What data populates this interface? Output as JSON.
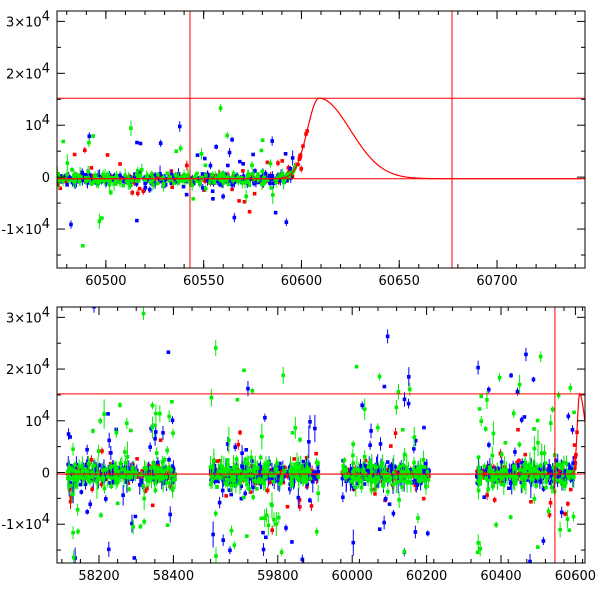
{
  "chart_data": [
    {
      "type": "scatter",
      "panel": "top",
      "title": "",
      "xlabel": "",
      "ylabel": "",
      "xlim": [
        60475,
        60745
      ],
      "ylim": [
        -17500,
        32000
      ],
      "x_ticks": [
        {
          "value": 60500,
          "label": "60500"
        },
        {
          "value": 60550,
          "label": "60550"
        },
        {
          "value": 60600,
          "label": "60600"
        },
        {
          "value": 60650,
          "label": "60650"
        },
        {
          "value": 60700,
          "label": "60700"
        }
      ],
      "y_ticks": [
        {
          "value": 30000,
          "base": "3×10",
          "exp": "4"
        },
        {
          "value": 20000,
          "base": "2×10",
          "exp": "4"
        },
        {
          "value": 10000,
          "base": "10",
          "exp": "4"
        },
        {
          "value": 0,
          "base": "0",
          "exp": ""
        },
        {
          "value": -10000,
          "base": "-1×10",
          "exp": "4"
        }
      ],
      "hlines": [
        15200,
        -300
      ],
      "vlines": [
        60543,
        60677
      ],
      "model": {
        "peak_x": 60609,
        "peak_y": 15200,
        "baseline": -300,
        "rise_tau": 6,
        "fall_tau": 16
      },
      "series": [
        {
          "color": "#ff0000",
          "segments": [
            [
              60475,
              60603
            ]
          ],
          "scatter": 900,
          "noise_frac": 0.15
        },
        {
          "color": "#0000ff",
          "segments": [
            [
              60475,
              60597
            ]
          ],
          "scatter": 1500,
          "noise_frac": 0.12
        },
        {
          "color": "#00ee00",
          "segments": [
            [
              60475,
              60597
            ]
          ],
          "scatter": 1700,
          "noise_frac": 0.14
        }
      ]
    },
    {
      "type": "scatter",
      "panel": "bottom",
      "title": "",
      "xlabel": "",
      "ylabel": "",
      "xlim": [
        0,
        1
      ],
      "ylim": [
        -17500,
        32000
      ],
      "x_ticks": [
        {
          "value": 0.0796,
          "label": "58200"
        },
        {
          "value": 0.2205,
          "label": "58400"
        },
        {
          "value": 0.4182,
          "label": "59800"
        },
        {
          "value": 0.5591,
          "label": "60000"
        },
        {
          "value": 0.7,
          "label": "60200"
        },
        {
          "value": 0.8409,
          "label": "60400"
        },
        {
          "value": 0.9818,
          "label": "60600"
        }
      ],
      "y_ticks": [
        {
          "value": 30000,
          "base": "3×10",
          "exp": "4"
        },
        {
          "value": 20000,
          "base": "2×10",
          "exp": "4"
        },
        {
          "value": 10000,
          "base": "10",
          "exp": "4"
        },
        {
          "value": 0,
          "base": "0",
          "exp": ""
        },
        {
          "value": -10000,
          "base": "-1×10",
          "exp": "4"
        }
      ],
      "hlines": [
        15200,
        -300
      ],
      "vlines": [
        0.943
      ],
      "model": {
        "peak_x": 0.9896,
        "peak_y": 15200,
        "baseline": -300,
        "rise_tau": 0.0042,
        "fall_tau": 0.0112
      },
      "series": [
        {
          "color": "#ff0000",
          "segments": [
            [
              0.02,
              0.225
            ],
            [
              0.29,
              0.495
            ],
            [
              0.54,
              0.705
            ],
            [
              0.795,
              0.985
            ]
          ],
          "scatter": 1200,
          "noise_frac": 0.12
        },
        {
          "color": "#0000ff",
          "segments": [
            [
              0.02,
              0.225
            ],
            [
              0.29,
              0.495
            ],
            [
              0.54,
              0.705
            ],
            [
              0.795,
              0.98
            ]
          ],
          "scatter": 2800,
          "noise_frac": 0.2
        },
        {
          "color": "#00ee00",
          "segments": [
            [
              0.02,
              0.225
            ],
            [
              0.29,
              0.495
            ],
            [
              0.54,
              0.705
            ],
            [
              0.795,
              0.98
            ]
          ],
          "scatter": 3200,
          "noise_frac": 0.22
        }
      ]
    }
  ]
}
